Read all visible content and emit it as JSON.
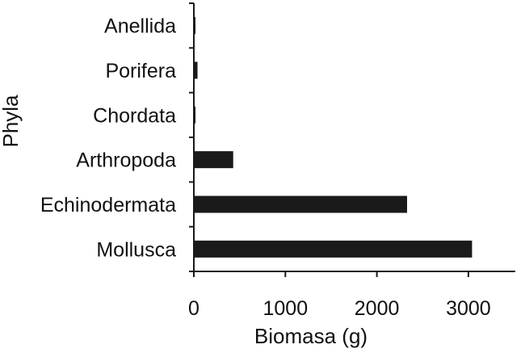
{
  "chart_data": {
    "type": "bar",
    "orientation": "horizontal",
    "categories": [
      "Anellida",
      "Porifera",
      "Chordata",
      "Arthropoda",
      "Echinodermata",
      "Mollusca"
    ],
    "values": [
      10,
      40,
      15,
      430,
      2330,
      3040
    ],
    "xlabel": "Biomasa (g)",
    "ylabel": "Phyla",
    "xlim": [
      0,
      3500
    ],
    "xticks": [
      "0",
      "1000",
      "2000",
      "3000"
    ],
    "grid": false,
    "bar_color": "#1a1a1a"
  }
}
